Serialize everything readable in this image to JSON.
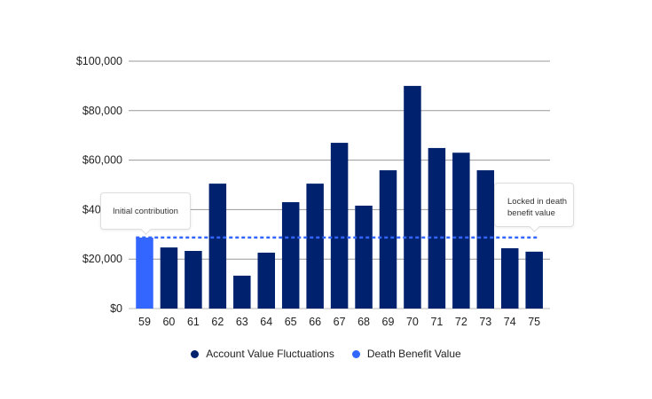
{
  "chart_data": {
    "type": "bar",
    "categories": [
      "59",
      "60",
      "61",
      "62",
      "63",
      "64",
      "65",
      "66",
      "67",
      "68",
      "69",
      "70",
      "71",
      "72",
      "73",
      "74",
      "75"
    ],
    "series": [
      {
        "name": "Account Value Fluctuations",
        "color": "#00216e",
        "values": [
          null,
          24700,
          23300,
          50500,
          13300,
          22600,
          43000,
          50500,
          67000,
          41600,
          55900,
          90000,
          64900,
          63000,
          55900,
          24400,
          23000
        ]
      },
      {
        "name": "Death Benefit Value",
        "color": "#3366ff",
        "values": [
          28700,
          null,
          null,
          null,
          null,
          null,
          null,
          null,
          null,
          null,
          null,
          null,
          null,
          null,
          null,
          null,
          null
        ]
      }
    ],
    "reference_line": {
      "value": 28700,
      "style": "dotted",
      "color": "#3366ff"
    },
    "ylim": [
      0,
      100000
    ],
    "yticks": [
      "$0",
      "$20,000",
      "$40,000",
      "$60,000",
      "$80,000",
      "$100,000"
    ],
    "ytick_values": [
      0,
      20000,
      40000,
      60000,
      80000,
      100000
    ],
    "grid": true,
    "legend_position": "bottom",
    "annotations": [
      "Initial contribution",
      "Locked in death benefit value"
    ]
  }
}
